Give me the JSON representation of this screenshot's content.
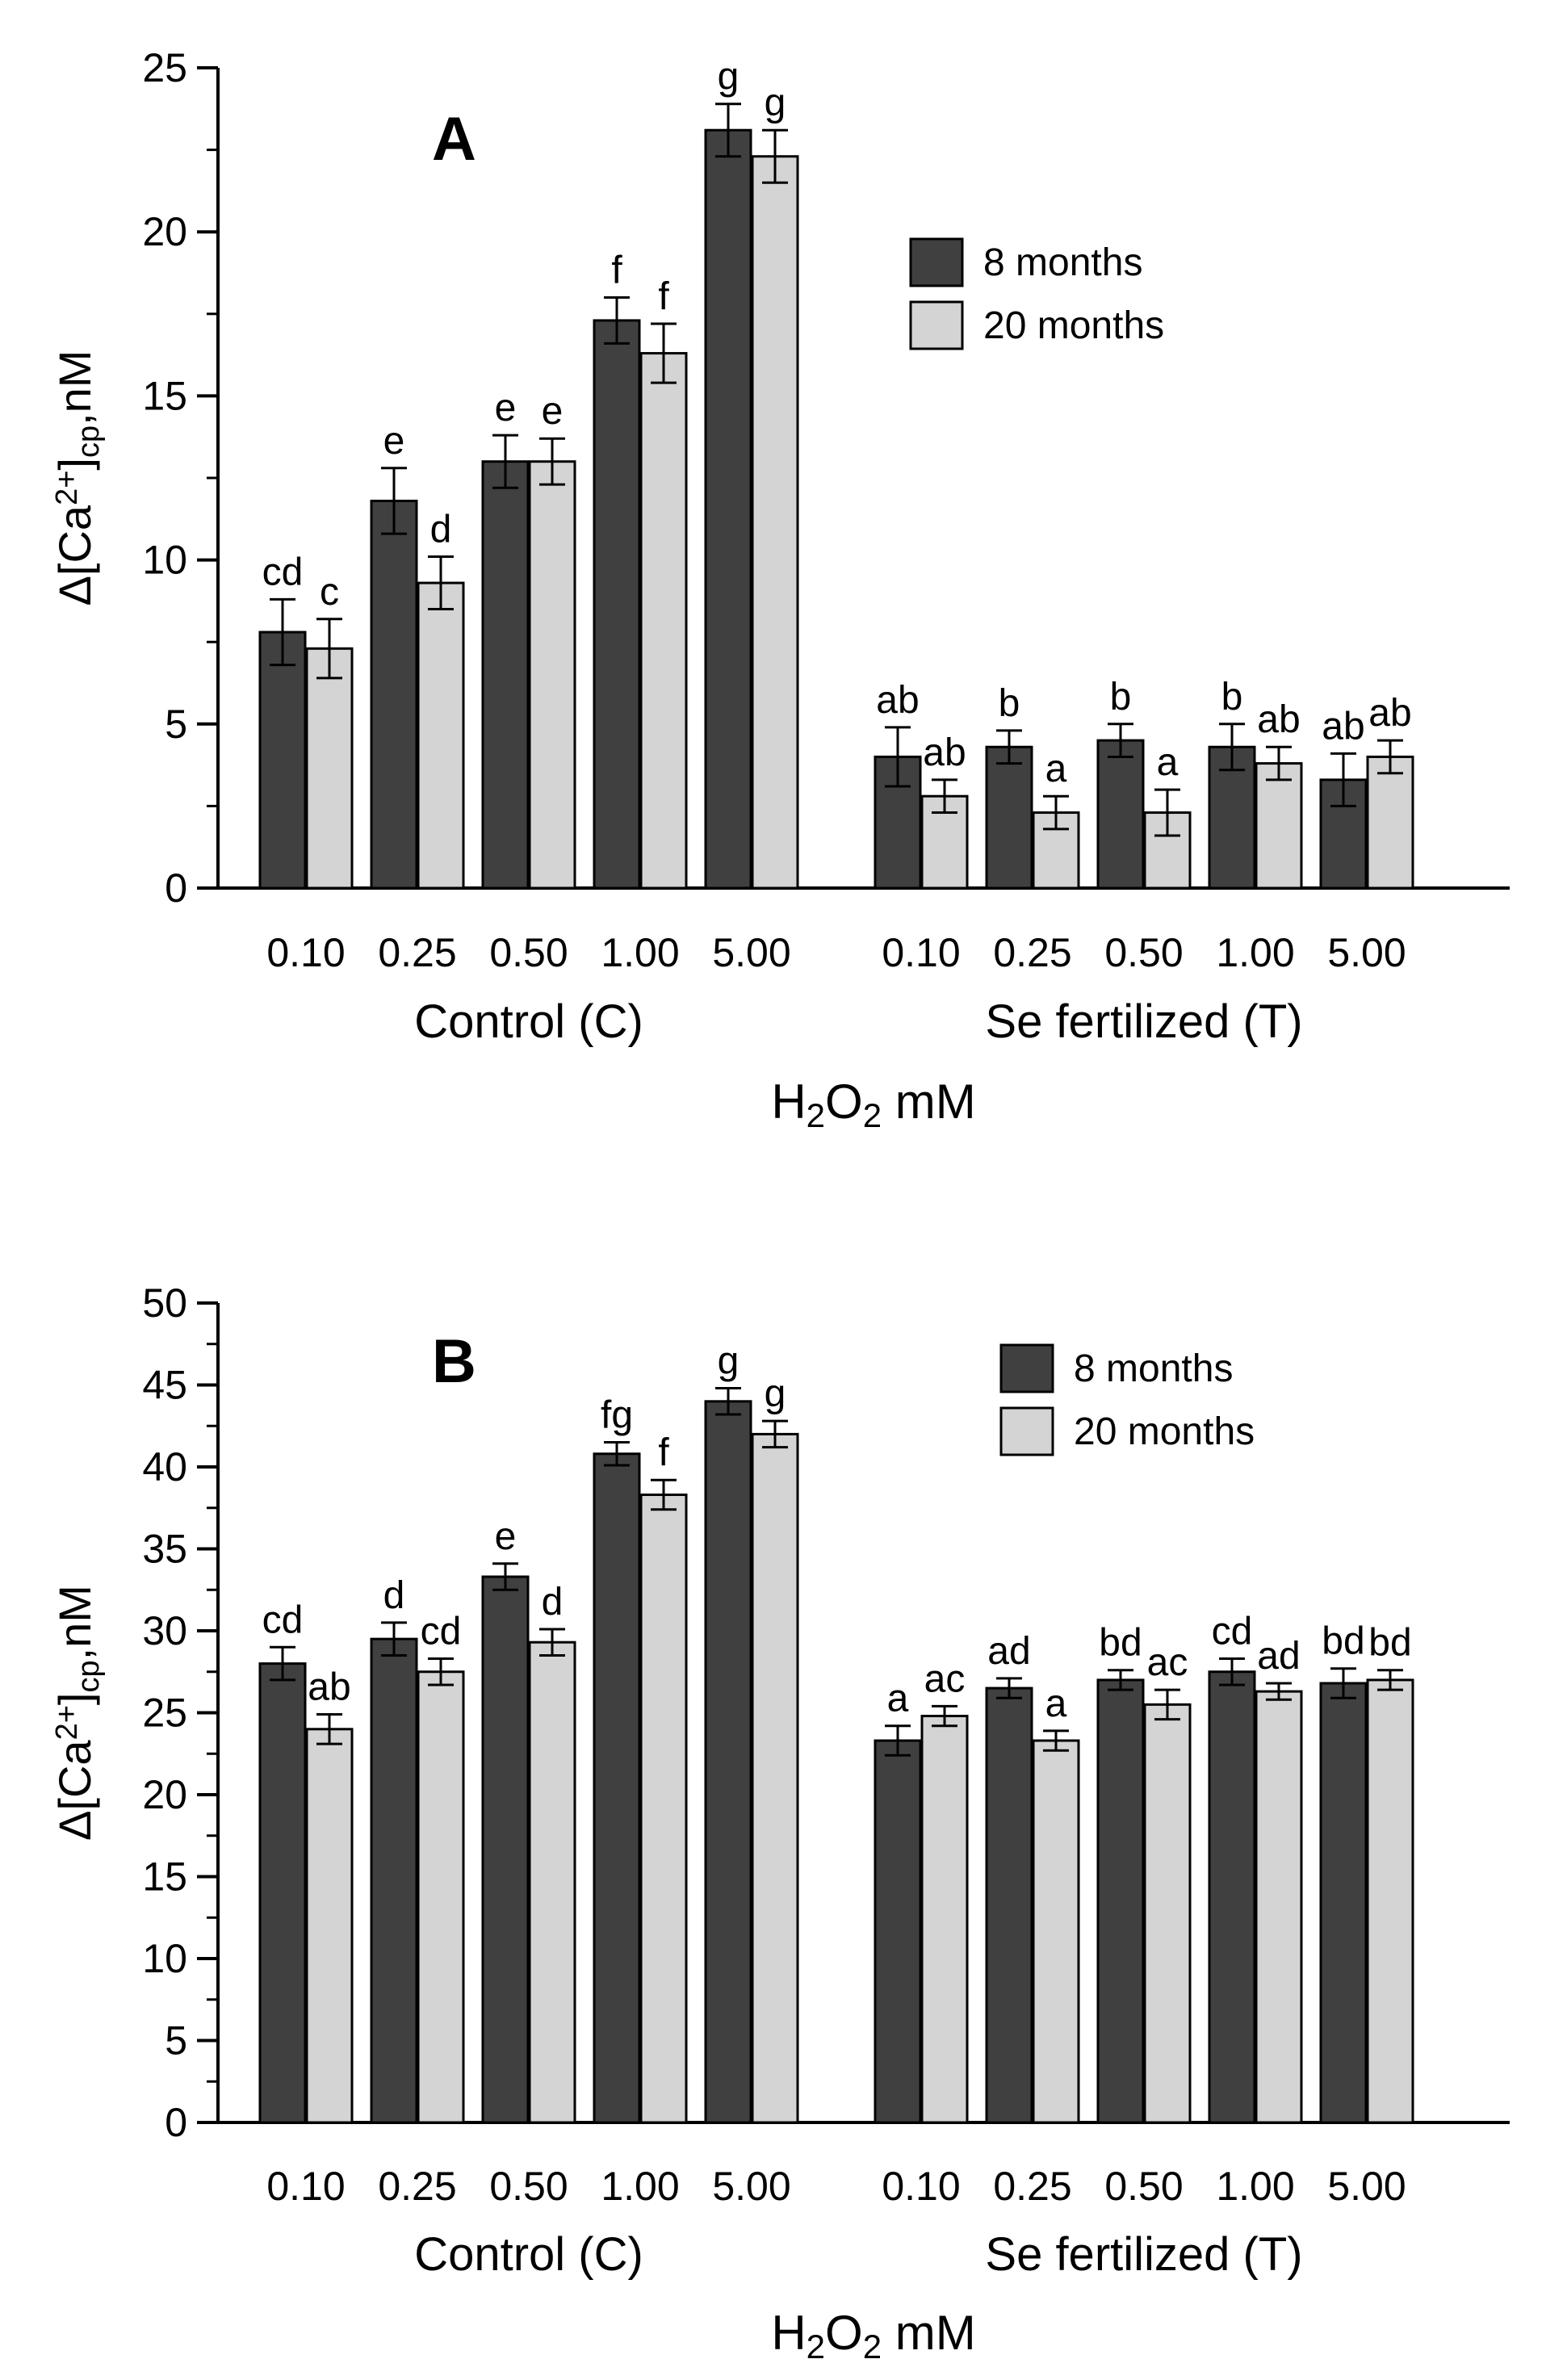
{
  "colors": {
    "8 months": "#404040",
    "20 months": "#d4d4d4",
    "outline": "#000000"
  },
  "chart_data": [
    {
      "panel": "A",
      "type": "bar",
      "groups": [
        "Control (C)",
        "Se fertilized (T)"
      ],
      "categories": [
        "0.10",
        "0.25",
        "0.50",
        "1.00",
        "5.00"
      ],
      "xlabel": "H2O2 mM",
      "ylabel": "Δ[Ca2+]cp,nM",
      "ylim": [
        0,
        25
      ],
      "yticks": [
        0,
        5,
        10,
        15,
        20,
        25
      ],
      "legend": {
        "position": "top-right"
      },
      "series": [
        {
          "name": "8 months",
          "values": [
            [
              7.8,
              11.8,
              13.0,
              17.3,
              23.1
            ],
            [
              4.0,
              4.3,
              4.5,
              4.3,
              3.3
            ]
          ],
          "errors": [
            [
              1.0,
              1.0,
              0.8,
              0.7,
              0.8
            ],
            [
              0.9,
              0.5,
              0.5,
              0.7,
              0.8
            ]
          ],
          "labels": [
            [
              "cd",
              "e",
              "e",
              "f",
              "g"
            ],
            [
              "ab",
              "b",
              "b",
              "b",
              "ab"
            ]
          ]
        },
        {
          "name": "20 months",
          "values": [
            [
              7.3,
              9.3,
              13.0,
              16.3,
              22.3
            ],
            [
              2.8,
              2.3,
              2.3,
              3.8,
              4.0
            ]
          ],
          "errors": [
            [
              0.9,
              0.8,
              0.7,
              0.9,
              0.8
            ],
            [
              0.5,
              0.5,
              0.7,
              0.5,
              0.5
            ]
          ],
          "labels": [
            [
              "c",
              "d",
              "e",
              "f",
              "g"
            ],
            [
              "ab",
              "a",
              "a",
              "ab",
              "ab"
            ]
          ]
        }
      ]
    },
    {
      "panel": "B",
      "type": "bar",
      "groups": [
        "Control (C)",
        "Se fertilized (T)"
      ],
      "categories": [
        "0.10",
        "0.25",
        "0.50",
        "1.00",
        "5.00"
      ],
      "xlabel": "H2O2 mM",
      "ylabel": "Δ[Ca2+]cp,nM",
      "ylim": [
        0,
        50
      ],
      "yticks": [
        0,
        5,
        10,
        15,
        20,
        25,
        30,
        35,
        40,
        45,
        50
      ],
      "legend": {
        "position": "top-right"
      },
      "series": [
        {
          "name": "8 months",
          "values": [
            [
              28.0,
              29.5,
              33.3,
              40.8,
              44.0
            ],
            [
              23.3,
              26.5,
              27.0,
              27.5,
              26.8
            ]
          ],
          "errors": [
            [
              1.0,
              1.0,
              0.8,
              0.7,
              0.8
            ],
            [
              0.9,
              0.6,
              0.6,
              0.8,
              0.9
            ]
          ],
          "labels": [
            [
              "cd",
              "d",
              "e",
              "fg",
              "g"
            ],
            [
              "a",
              "ad",
              "bd",
              "cd",
              "bd"
            ]
          ]
        },
        {
          "name": "20 months",
          "values": [
            [
              24.0,
              27.5,
              29.3,
              38.3,
              42.0
            ],
            [
              24.8,
              23.3,
              25.5,
              26.3,
              27.0
            ]
          ],
          "errors": [
            [
              0.9,
              0.8,
              0.8,
              0.9,
              0.8
            ],
            [
              0.6,
              0.6,
              0.9,
              0.5,
              0.6
            ]
          ],
          "labels": [
            [
              "ab",
              "cd",
              "d",
              "f",
              "g"
            ],
            [
              "ac",
              "a",
              "ac",
              "ad",
              "bd"
            ]
          ]
        }
      ]
    }
  ]
}
